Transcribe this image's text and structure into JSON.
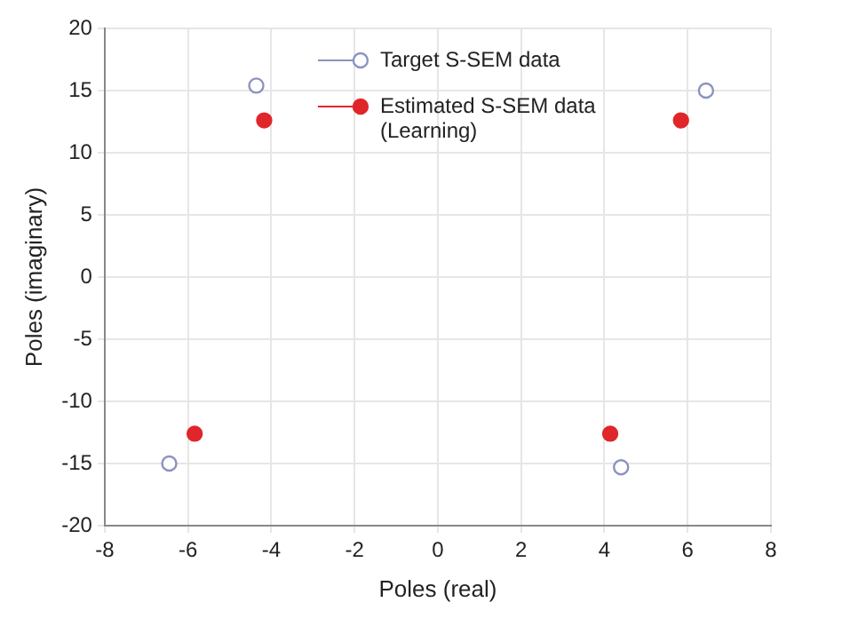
{
  "chart_data": {
    "type": "scatter",
    "xlabel": "Poles (real)",
    "ylabel": "Poles (imaginary)",
    "series": [
      {
        "name": "Target S-SEM data",
        "color": "#8a93c0",
        "x": [
          -4.36,
          6.44,
          -6.45,
          4.4
        ],
        "values": [
          15.4,
          15,
          -15,
          -15.3
        ]
      },
      {
        "name": "Estimated S-SEM data (Learning)",
        "color": "#e0262a",
        "x": [
          -4.17,
          5.84,
          -5.84,
          4.14
        ],
        "values": [
          12.6,
          12.6,
          -12.6,
          -12.6
        ]
      }
    ],
    "xlim": [
      -8,
      8
    ],
    "xticks": [
      -8,
      -6,
      -4,
      -2,
      0,
      2,
      4,
      6,
      8
    ],
    "ylim": [
      -20,
      20
    ],
    "yticks": [
      -20,
      -15,
      -10,
      -5,
      0,
      5,
      10,
      15,
      20
    ],
    "grid": true,
    "legend": "top",
    "marker": "circle"
  }
}
